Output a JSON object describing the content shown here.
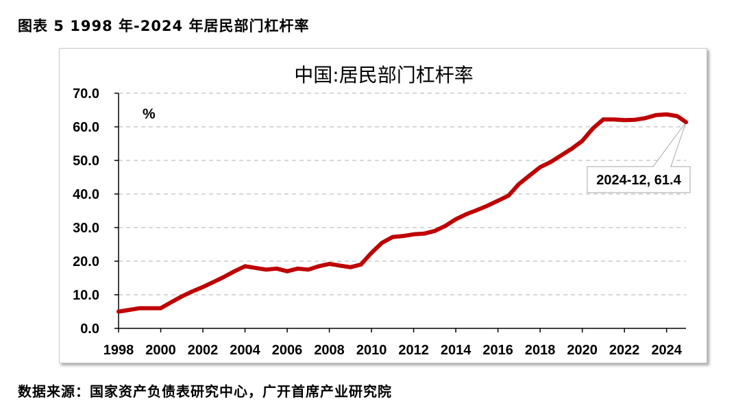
{
  "caption": "图表 5 1998 年-2024 年居民部门杠杆率",
  "source": "数据来源：国家资产负债表研究中心，广开首席产业研究院",
  "colors": {
    "line": "#c00000",
    "grid": "#bfbfbf",
    "axis": "#000000"
  },
  "chart_data": {
    "type": "line",
    "title": "中国:居民部门杠杆率",
    "unit_label": "%",
    "xlim": [
      1998,
      2024.92
    ],
    "ylim": [
      0,
      70
    ],
    "y_ticks": [
      "0.0",
      "10.0",
      "20.0",
      "30.0",
      "40.0",
      "50.0",
      "60.0",
      "70.0"
    ],
    "x_ticks": [
      "1998",
      "2000",
      "2002",
      "2004",
      "2006",
      "2008",
      "2010",
      "2012",
      "2014",
      "2016",
      "2018",
      "2020",
      "2022",
      "2024"
    ],
    "grid": true,
    "annotation": {
      "text": "2024-12, 61.4",
      "x": 2024.92,
      "y": 61.4
    },
    "series": [
      {
        "x": [
          1998,
          1998.5,
          1999,
          1999.5,
          2000,
          2000.5,
          2001,
          2001.5,
          2002,
          2002.5,
          2003,
          2003.5,
          2004,
          2004.5,
          2005,
          2005.5,
          2006,
          2006.5,
          2007,
          2007.5,
          2008,
          2008.5,
          2009,
          2009.5,
          2010,
          2010.5,
          2011,
          2011.5,
          2012,
          2012.5,
          2013,
          2013.5,
          2014,
          2014.5,
          2015,
          2015.5,
          2016,
          2016.5,
          2017,
          2017.5,
          2018,
          2018.5,
          2019,
          2019.5,
          2020,
          2020.5,
          2021,
          2021.5,
          2022,
          2022.5,
          2023,
          2023.5,
          2024,
          2024.5,
          2024.92
        ],
        "values": [
          5.0,
          5.5,
          6.0,
          6.0,
          6.0,
          7.8,
          9.5,
          11.0,
          12.3,
          13.8,
          15.3,
          17.0,
          18.5,
          18.0,
          17.5,
          17.8,
          17.0,
          17.8,
          17.5,
          18.5,
          19.2,
          18.7,
          18.2,
          19.0,
          22.5,
          25.5,
          27.2,
          27.5,
          28.0,
          28.2,
          29.0,
          30.5,
          32.5,
          34.0,
          35.2,
          36.5,
          38.0,
          39.5,
          43.0,
          45.5,
          48.0,
          49.5,
          51.5,
          53.5,
          55.8,
          59.5,
          62.2,
          62.2,
          62.0,
          62.1,
          62.6,
          63.5,
          63.7,
          63.2,
          61.4
        ]
      }
    ]
  }
}
